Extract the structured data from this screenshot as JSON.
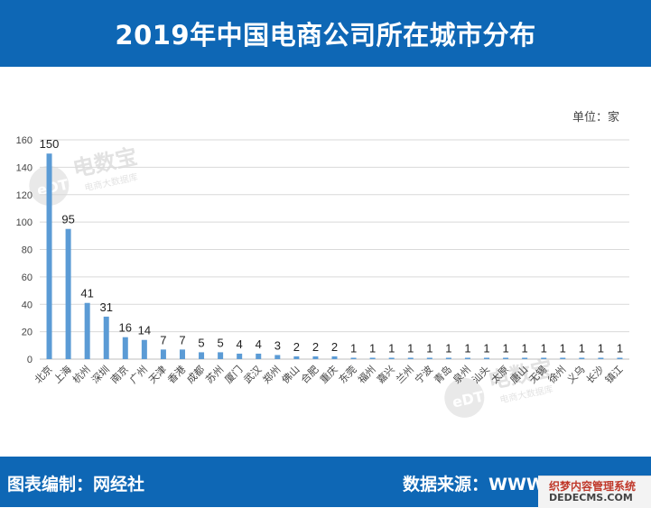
{
  "header": {
    "title": "2019年中国电商公司所在城市分布"
  },
  "unit_label": "单位：家",
  "footer": {
    "editor": "图表编制：网经社",
    "source": "数据来源：WWW.100EC.CN"
  },
  "watermark": {
    "brand": "电数宝",
    "tagline": "电商大数据库",
    "logo": "eDT"
  },
  "overlay_badge": {
    "line1": "织梦内容管理系统",
    "line2": "DEDECMS.COM"
  },
  "chart_data": {
    "type": "bar",
    "title": "2019年中国电商公司所在城市分布",
    "xlabel": "",
    "ylabel": "",
    "ylim": [
      0,
      160
    ],
    "yticks": [
      0,
      20,
      40,
      60,
      80,
      100,
      120,
      140,
      160
    ],
    "grid": true,
    "bar_color": "#5b9bd5",
    "categories": [
      "北京",
      "上海",
      "杭州",
      "深圳",
      "南京",
      "广州",
      "天津",
      "香港",
      "成都",
      "苏州",
      "厦门",
      "武汉",
      "郑州",
      "佛山",
      "合肥",
      "重庆",
      "东莞",
      "福州",
      "嘉兴",
      "兰州",
      "宁波",
      "青岛",
      "泉州",
      "汕头",
      "太原",
      "唐山",
      "无锡",
      "徐州",
      "义乌",
      "长沙",
      "镇江"
    ],
    "values": [
      150,
      95,
      41,
      31,
      16,
      14,
      7,
      7,
      5,
      5,
      4,
      4,
      3,
      2,
      2,
      2,
      1,
      1,
      1,
      1,
      1,
      1,
      1,
      1,
      1,
      1,
      1,
      1,
      1,
      1,
      1
    ]
  }
}
